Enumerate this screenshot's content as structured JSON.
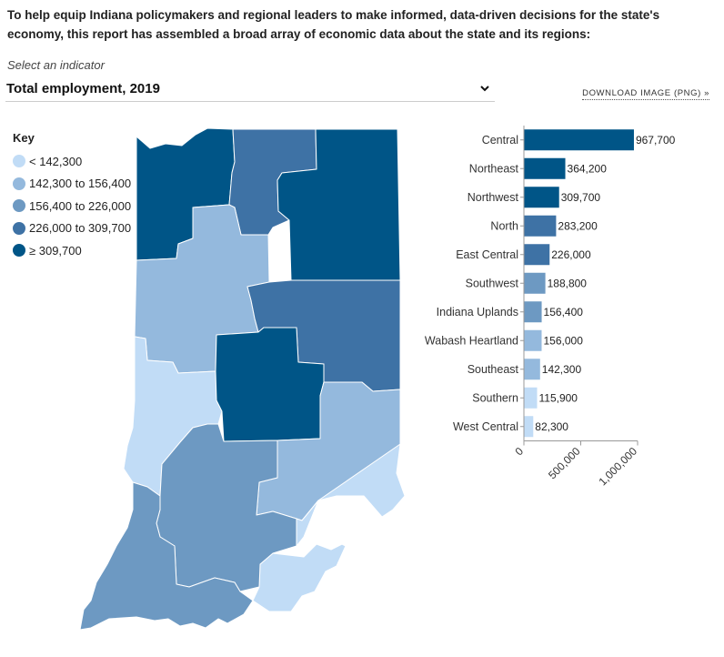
{
  "intro": "To help equip Indiana policymakers and regional leaders to make informed, data-driven decisions for the state's economy, this report has assembled a broad array of economic data about the state and its regions:",
  "selector": {
    "label": "Select an indicator",
    "value": "Total employment, 2019"
  },
  "download_label": "DOWNLOAD IMAGE (PNG) »",
  "key": {
    "title": "Key",
    "items": [
      {
        "label": "< 142,300",
        "color": "#c1dcf6"
      },
      {
        "label": "142,300 to 156,400",
        "color": "#94b9dd"
      },
      {
        "label": "156,400 to 226,000",
        "color": "#6d99c2"
      },
      {
        "label": "226,000 to 309,700",
        "color": "#3e72a5"
      },
      {
        "label": "≥ 309,700",
        "color": "#005587"
      }
    ]
  },
  "chart_data": {
    "type": "bar",
    "orientation": "horizontal",
    "categories": [
      "Central",
      "Northeast",
      "Northwest",
      "North",
      "East Central",
      "Southwest",
      "Indiana Uplands",
      "Wabash Heartland",
      "Southeast",
      "Southern",
      "West Central"
    ],
    "values": [
      967700,
      364200,
      309700,
      283200,
      226000,
      188800,
      156400,
      156000,
      142300,
      115900,
      82300
    ],
    "value_labels": [
      "967,700",
      "364,200",
      "309,700",
      "283,200",
      "226,000",
      "188,800",
      "156,400",
      "156,000",
      "142,300",
      "115,900",
      "82,300"
    ],
    "xlim": [
      0,
      1000000
    ],
    "ticks": [
      0,
      500000,
      1000000
    ],
    "tick_labels": [
      "0",
      "500,000",
      "1,000,000"
    ]
  }
}
